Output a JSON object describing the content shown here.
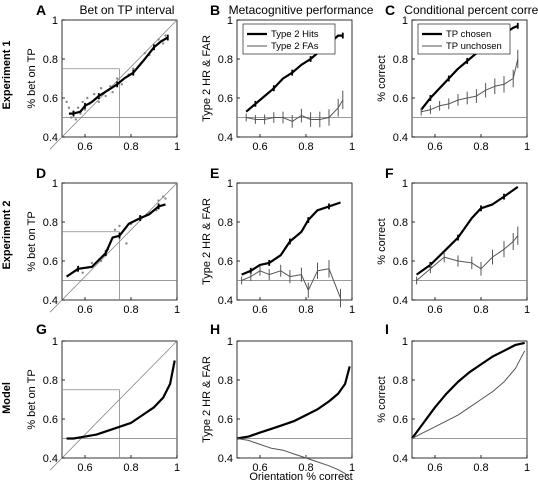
{
  "column_titles": [
    "Bet on TP interval",
    "Metacognitive performance",
    "Conditional percent correct"
  ],
  "row_labels": [
    "Experiment 1",
    "Experiment 2",
    "Model"
  ],
  "panel_letters": [
    "A",
    "B",
    "C",
    "D",
    "E",
    "F",
    "G",
    "H",
    "I"
  ],
  "xlabel_bottom": "Orientation % correct",
  "chart_data": [
    {
      "panel": "A",
      "type": "line",
      "ylabel": "% bet on TP",
      "xlim": [
        0.5,
        1.0
      ],
      "ylim": [
        0.4,
        1.0
      ],
      "xticks": [
        "0.6",
        "0.8",
        "1"
      ],
      "yticks": [
        "0.4",
        "0.6",
        "0.8",
        "1"
      ],
      "series": [
        {
          "x": [
            0.53,
            0.55,
            0.58,
            0.6,
            0.63,
            0.66,
            0.7,
            0.74,
            0.77,
            0.81,
            0.86,
            0.9,
            0.93,
            0.96
          ],
          "y": [
            0.52,
            0.52,
            0.53,
            0.56,
            0.58,
            0.61,
            0.64,
            0.67,
            0.7,
            0.73,
            0.8,
            0.86,
            0.89,
            0.91
          ]
        }
      ],
      "scatter": [
        [
          0.52,
          0.58
        ],
        [
          0.53,
          0.55
        ],
        [
          0.54,
          0.5
        ],
        [
          0.55,
          0.53
        ],
        [
          0.56,
          0.49
        ],
        [
          0.57,
          0.55
        ],
        [
          0.58,
          0.52
        ],
        [
          0.59,
          0.58
        ],
        [
          0.6,
          0.54
        ],
        [
          0.61,
          0.6
        ],
        [
          0.62,
          0.57
        ],
        [
          0.64,
          0.62
        ],
        [
          0.66,
          0.58
        ],
        [
          0.67,
          0.65
        ],
        [
          0.69,
          0.61
        ],
        [
          0.71,
          0.66
        ],
        [
          0.72,
          0.63
        ],
        [
          0.74,
          0.7
        ],
        [
          0.76,
          0.67
        ],
        [
          0.79,
          0.72
        ],
        [
          0.81,
          0.75
        ],
        [
          0.84,
          0.77
        ],
        [
          0.86,
          0.83
        ],
        [
          0.88,
          0.82
        ],
        [
          0.9,
          0.86
        ],
        [
          0.92,
          0.9
        ],
        [
          0.94,
          0.88
        ],
        [
          0.95,
          0.92
        ]
      ]
    },
    {
      "panel": "B",
      "type": "line",
      "ylabel": "Type 2 HR & FAR",
      "xlim": [
        0.5,
        1.0
      ],
      "ylim": [
        0.4,
        1.0
      ],
      "xticks": [
        "0.6",
        "0.8",
        "1"
      ],
      "yticks": [
        "0.4",
        "0.6",
        "0.8",
        "1"
      ],
      "legend": [
        "Type 2 Hits",
        "Type 2 FAs"
      ],
      "series": [
        {
          "name": "Type 2 Hits",
          "x": [
            0.54,
            0.58,
            0.62,
            0.66,
            0.7,
            0.74,
            0.78,
            0.82,
            0.86,
            0.9,
            0.94,
            0.96
          ],
          "y": [
            0.53,
            0.57,
            0.61,
            0.65,
            0.7,
            0.73,
            0.77,
            0.8,
            0.84,
            0.88,
            0.92,
            0.92
          ]
        },
        {
          "name": "Type 2 FAs",
          "x": [
            0.54,
            0.58,
            0.62,
            0.66,
            0.7,
            0.74,
            0.78,
            0.82,
            0.86,
            0.9,
            0.94,
            0.96
          ],
          "y": [
            0.5,
            0.49,
            0.49,
            0.5,
            0.5,
            0.48,
            0.51,
            0.49,
            0.49,
            0.5,
            0.55,
            0.59
          ]
        }
      ]
    },
    {
      "panel": "C",
      "type": "line",
      "ylabel": "% correct",
      "xlim": [
        0.5,
        1.0
      ],
      "ylim": [
        0.4,
        1.0
      ],
      "xticks": [
        "0.6",
        "0.8",
        "1"
      ],
      "yticks": [
        "0.4",
        "0.6",
        "0.8",
        "1"
      ],
      "legend": [
        "TP chosen",
        "TP unchosen"
      ],
      "series": [
        {
          "name": "TP chosen",
          "x": [
            0.54,
            0.58,
            0.62,
            0.66,
            0.7,
            0.74,
            0.78,
            0.82,
            0.86,
            0.9,
            0.94,
            0.96
          ],
          "y": [
            0.54,
            0.6,
            0.65,
            0.7,
            0.75,
            0.79,
            0.83,
            0.87,
            0.9,
            0.93,
            0.96,
            0.97
          ]
        },
        {
          "name": "TP unchosen",
          "x": [
            0.54,
            0.58,
            0.62,
            0.66,
            0.7,
            0.74,
            0.78,
            0.82,
            0.86,
            0.9,
            0.94,
            0.96
          ],
          "y": [
            0.53,
            0.54,
            0.56,
            0.57,
            0.59,
            0.6,
            0.61,
            0.64,
            0.66,
            0.67,
            0.7,
            0.8
          ]
        }
      ]
    },
    {
      "panel": "D",
      "type": "line",
      "ylabel": "% bet on TP",
      "xlim": [
        0.5,
        1.0
      ],
      "ylim": [
        0.4,
        1.0
      ],
      "xticks": [
        "0.6",
        "0.8",
        "1"
      ],
      "yticks": [
        "0.4",
        "0.6",
        "0.8",
        "1"
      ],
      "series": [
        {
          "x": [
            0.52,
            0.57,
            0.63,
            0.69,
            0.72,
            0.75,
            0.79,
            0.84,
            0.88,
            0.92,
            0.95
          ],
          "y": [
            0.52,
            0.56,
            0.57,
            0.64,
            0.72,
            0.73,
            0.79,
            0.82,
            0.84,
            0.88,
            0.89
          ]
        }
      ],
      "scatter": [
        [
          0.56,
          0.55
        ],
        [
          0.59,
          0.54
        ],
        [
          0.63,
          0.59
        ],
        [
          0.67,
          0.6
        ],
        [
          0.7,
          0.66
        ],
        [
          0.73,
          0.76
        ],
        [
          0.75,
          0.78
        ],
        [
          0.78,
          0.69
        ],
        [
          0.8,
          0.79
        ],
        [
          0.84,
          0.83
        ],
        [
          0.87,
          0.84
        ],
        [
          0.88,
          0.85
        ],
        [
          0.91,
          0.86
        ],
        [
          0.92,
          0.91
        ],
        [
          0.94,
          0.93
        ],
        [
          0.95,
          0.92
        ]
      ]
    },
    {
      "panel": "E",
      "type": "line",
      "ylabel": "Type 2 HR & FAR",
      "xlim": [
        0.5,
        1.0
      ],
      "ylim": [
        0.4,
        1.0
      ],
      "xticks": [
        "0.6",
        "0.8",
        "1"
      ],
      "yticks": [
        "0.4",
        "0.6",
        "0.8",
        "1"
      ],
      "series": [
        {
          "name": "Type 2 Hits",
          "x": [
            0.52,
            0.56,
            0.6,
            0.64,
            0.69,
            0.73,
            0.78,
            0.81,
            0.85,
            0.9,
            0.95
          ],
          "y": [
            0.53,
            0.55,
            0.58,
            0.59,
            0.63,
            0.7,
            0.75,
            0.81,
            0.86,
            0.88,
            0.9
          ]
        },
        {
          "name": "Type 2 FAs",
          "x": [
            0.52,
            0.56,
            0.6,
            0.64,
            0.69,
            0.73,
            0.78,
            0.81,
            0.85,
            0.9,
            0.95
          ],
          "y": [
            0.5,
            0.52,
            0.55,
            0.53,
            0.55,
            0.52,
            0.53,
            0.45,
            0.55,
            0.56,
            0.41
          ]
        }
      ]
    },
    {
      "panel": "F",
      "type": "line",
      "ylabel": "% correct",
      "xlim": [
        0.5,
        1.0
      ],
      "ylim": [
        0.4,
        1.0
      ],
      "xticks": [
        "0.6",
        "0.8",
        "1"
      ],
      "yticks": [
        "0.4",
        "0.6",
        "0.8",
        "1"
      ],
      "series": [
        {
          "name": "TP chosen",
          "x": [
            0.52,
            0.58,
            0.64,
            0.7,
            0.76,
            0.8,
            0.85,
            0.9,
            0.96
          ],
          "y": [
            0.53,
            0.58,
            0.65,
            0.72,
            0.82,
            0.87,
            0.89,
            0.93,
            0.98
          ]
        },
        {
          "name": "TP unchosen",
          "x": [
            0.52,
            0.58,
            0.64,
            0.7,
            0.76,
            0.8,
            0.85,
            0.9,
            0.94,
            0.96
          ],
          "y": [
            0.5,
            0.56,
            0.62,
            0.6,
            0.59,
            0.56,
            0.62,
            0.66,
            0.7,
            0.73
          ]
        }
      ]
    },
    {
      "panel": "G",
      "type": "line",
      "ylabel": "% bet on TP",
      "xlim": [
        0.5,
        1.0
      ],
      "ylim": [
        0.4,
        1.0
      ],
      "xticks": [
        "0.6",
        "0.8",
        "1"
      ],
      "yticks": [
        "0.4",
        "0.6",
        "0.8",
        "1"
      ],
      "series": [
        {
          "x": [
            0.52,
            0.55,
            0.6,
            0.65,
            0.7,
            0.75,
            0.8,
            0.85,
            0.9,
            0.94,
            0.97,
            0.99
          ],
          "y": [
            0.5,
            0.5,
            0.51,
            0.52,
            0.54,
            0.56,
            0.58,
            0.62,
            0.66,
            0.71,
            0.78,
            0.9
          ]
        }
      ]
    },
    {
      "panel": "H",
      "type": "line",
      "ylabel": "Type 2 HR & FAR",
      "xlabel": "Orientation % correct",
      "xlim": [
        0.5,
        1.0
      ],
      "ylim": [
        0.4,
        1.0
      ],
      "xticks": [
        "0.6",
        "0.8",
        "1"
      ],
      "yticks": [
        "0.4",
        "0.6",
        "0.8",
        "1"
      ],
      "series": [
        {
          "name": "Type 2 Hits",
          "x": [
            0.5,
            0.55,
            0.6,
            0.65,
            0.7,
            0.75,
            0.8,
            0.85,
            0.9,
            0.94,
            0.97,
            0.99
          ],
          "y": [
            0.5,
            0.51,
            0.53,
            0.55,
            0.57,
            0.59,
            0.62,
            0.65,
            0.69,
            0.73,
            0.78,
            0.87
          ]
        },
        {
          "name": "Type 2 FAs",
          "x": [
            0.5,
            0.55,
            0.6,
            0.65,
            0.7,
            0.75,
            0.8,
            0.85,
            0.9,
            0.94,
            0.97,
            0.99
          ],
          "y": [
            0.5,
            0.49,
            0.47,
            0.45,
            0.44,
            0.42,
            0.4,
            0.38,
            0.36,
            0.34,
            0.32,
            0.29
          ]
        }
      ]
    },
    {
      "panel": "I",
      "type": "line",
      "ylabel": "% correct",
      "xlim": [
        0.5,
        1.0
      ],
      "ylim": [
        0.4,
        1.0
      ],
      "xticks": [
        "0.6",
        "0.8",
        "1"
      ],
      "yticks": [
        "0.4",
        "0.6",
        "0.8",
        "1"
      ],
      "series": [
        {
          "name": "TP chosen",
          "x": [
            0.5,
            0.55,
            0.6,
            0.65,
            0.7,
            0.75,
            0.8,
            0.85,
            0.9,
            0.95,
            0.99
          ],
          "y": [
            0.5,
            0.58,
            0.66,
            0.73,
            0.79,
            0.84,
            0.88,
            0.92,
            0.95,
            0.98,
            0.99
          ]
        },
        {
          "name": "TP unchosen",
          "x": [
            0.5,
            0.55,
            0.6,
            0.65,
            0.7,
            0.75,
            0.8,
            0.85,
            0.9,
            0.95,
            0.99
          ],
          "y": [
            0.5,
            0.53,
            0.56,
            0.59,
            0.62,
            0.66,
            0.7,
            0.74,
            0.79,
            0.86,
            0.95
          ]
        }
      ]
    }
  ]
}
